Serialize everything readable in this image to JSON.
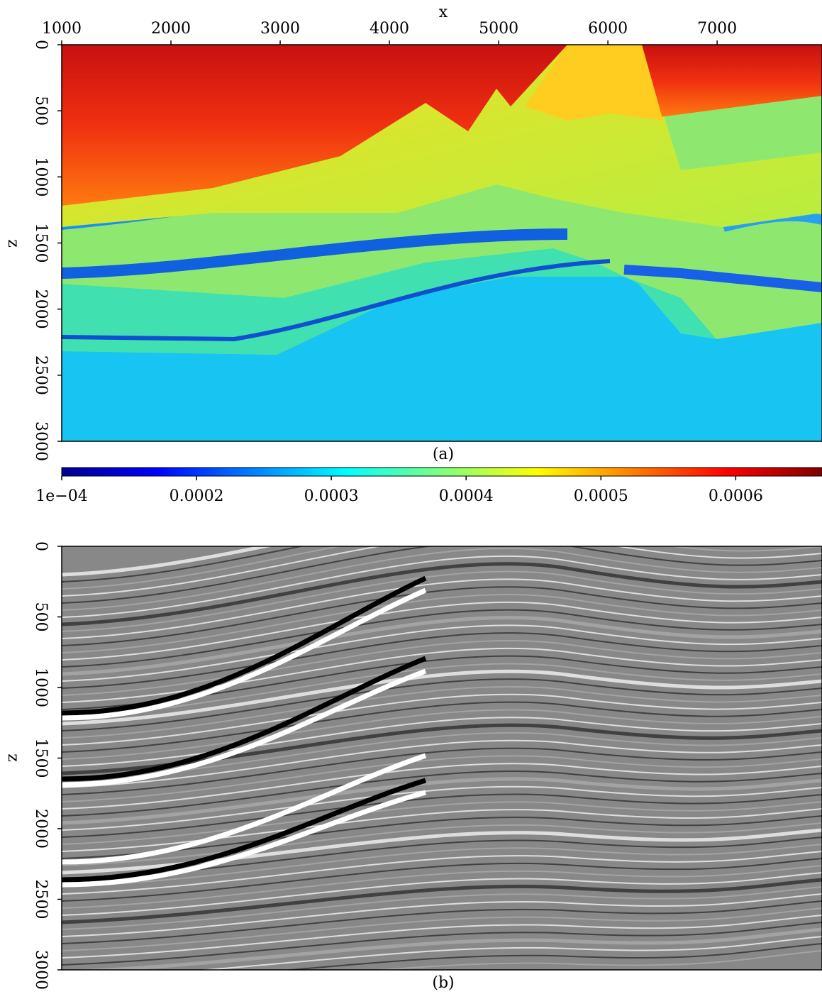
{
  "chart_data": [
    {
      "type": "heatmap",
      "caption": "(a)",
      "xlabel": "x",
      "ylabel": "z",
      "xlim": [
        1000,
        7960
      ],
      "xticks": [
        1000,
        2000,
        3000,
        4000,
        5000,
        6000,
        7000
      ],
      "ylim": [
        0,
        3000
      ],
      "y_inverted": true,
      "yticks": [
        0,
        500,
        1000,
        1500,
        2000,
        2500,
        3000
      ],
      "colorbar": {
        "colormap": "jet",
        "clim": [
          0.0001,
          0.000664
        ],
        "ticks": [
          {
            "value": 0.0001,
            "label": "1e−04"
          },
          0.0002,
          0.0003,
          0.0004,
          0.0005,
          0.0006
        ]
      }
    },
    {
      "type": "image",
      "caption": "(b)",
      "ylabel": "z",
      "ylim": [
        0,
        3000
      ],
      "y_inverted": true,
      "yticks": [
        0,
        500,
        1000,
        1500,
        2000,
        2500,
        3000
      ]
    }
  ]
}
